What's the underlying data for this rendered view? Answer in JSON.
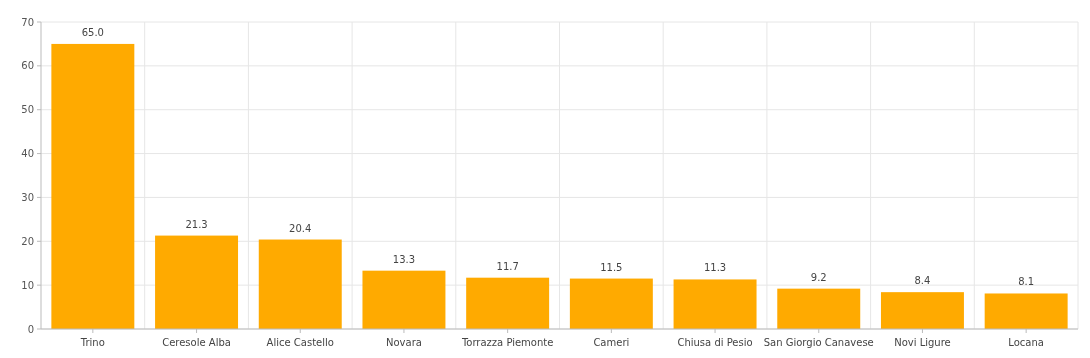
{
  "chart_data": {
    "type": "bar",
    "categories": [
      "Trino",
      "Ceresole Alba",
      "Alice Castello",
      "Novara",
      "Torrazza Piemonte",
      "Cameri",
      "Chiusa di Pesio",
      "San Giorgio Canavese",
      "Novi Ligure",
      "Locana"
    ],
    "values": [
      65.0,
      21.3,
      20.4,
      13.3,
      11.7,
      11.5,
      11.3,
      9.2,
      8.4,
      8.1
    ],
    "value_labels": [
      "65.0",
      "21.3",
      "20.4",
      "13.3",
      "11.7",
      "11.5",
      "11.3",
      "9.2",
      "8.4",
      "8.1"
    ],
    "color": "#ffaa00",
    "ylim": [
      0,
      70
    ],
    "yticks": [
      0,
      10,
      20,
      30,
      40,
      50,
      60,
      70
    ],
    "grid": true
  }
}
